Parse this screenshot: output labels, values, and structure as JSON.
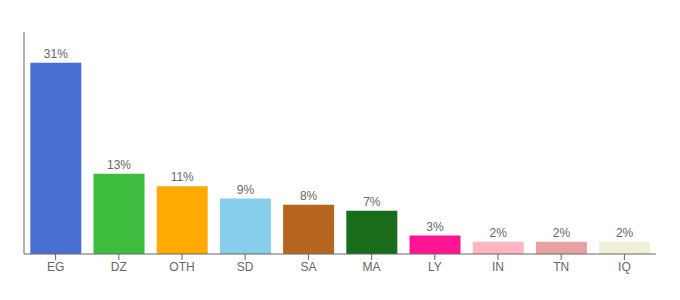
{
  "chart_data": {
    "type": "bar",
    "categories": [
      "EG",
      "DZ",
      "OTH",
      "SD",
      "SA",
      "MA",
      "LY",
      "IN",
      "TN",
      "IQ"
    ],
    "values": [
      31,
      13,
      11,
      9,
      8,
      7,
      3,
      2,
      2,
      2
    ],
    "value_labels": [
      "31%",
      "13%",
      "11%",
      "9%",
      "8%",
      "7%",
      "3%",
      "2%",
      "2%",
      "2%"
    ],
    "colors": [
      "#4a6fd4",
      "#3dbc3d",
      "#ffaa00",
      "#87ceeb",
      "#b5651d",
      "#1a6b1a",
      "#ff1493",
      "#ffb6c1",
      "#e8a0a0",
      "#f0f0d8"
    ],
    "ylim": [
      0,
      36
    ],
    "grid": false,
    "data_labels": true,
    "tick_labels": "x"
  }
}
